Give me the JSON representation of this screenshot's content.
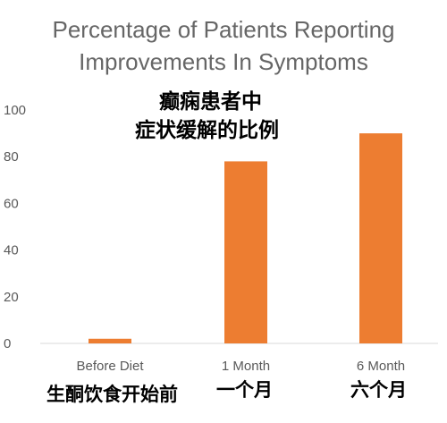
{
  "chart_data": {
    "type": "bar",
    "title_lines": [
      "Percentage of Patients Reporting",
      "Improvements In Symptoms"
    ],
    "subtitle_lines_cn": [
      "癫痫患者中",
      "症状缓解的比例"
    ],
    "categories": [
      "Before Diet",
      "1 Month",
      "6 Month"
    ],
    "categories_cn": [
      "生酮饮食开始前",
      "一个月",
      "六个月"
    ],
    "values": [
      2,
      78,
      90
    ],
    "y_ticks": [
      "0",
      "20",
      "40",
      "60",
      "80",
      "100"
    ],
    "ylim": [
      0,
      100
    ],
    "bar_color": "#ED7D31",
    "grid": false
  }
}
